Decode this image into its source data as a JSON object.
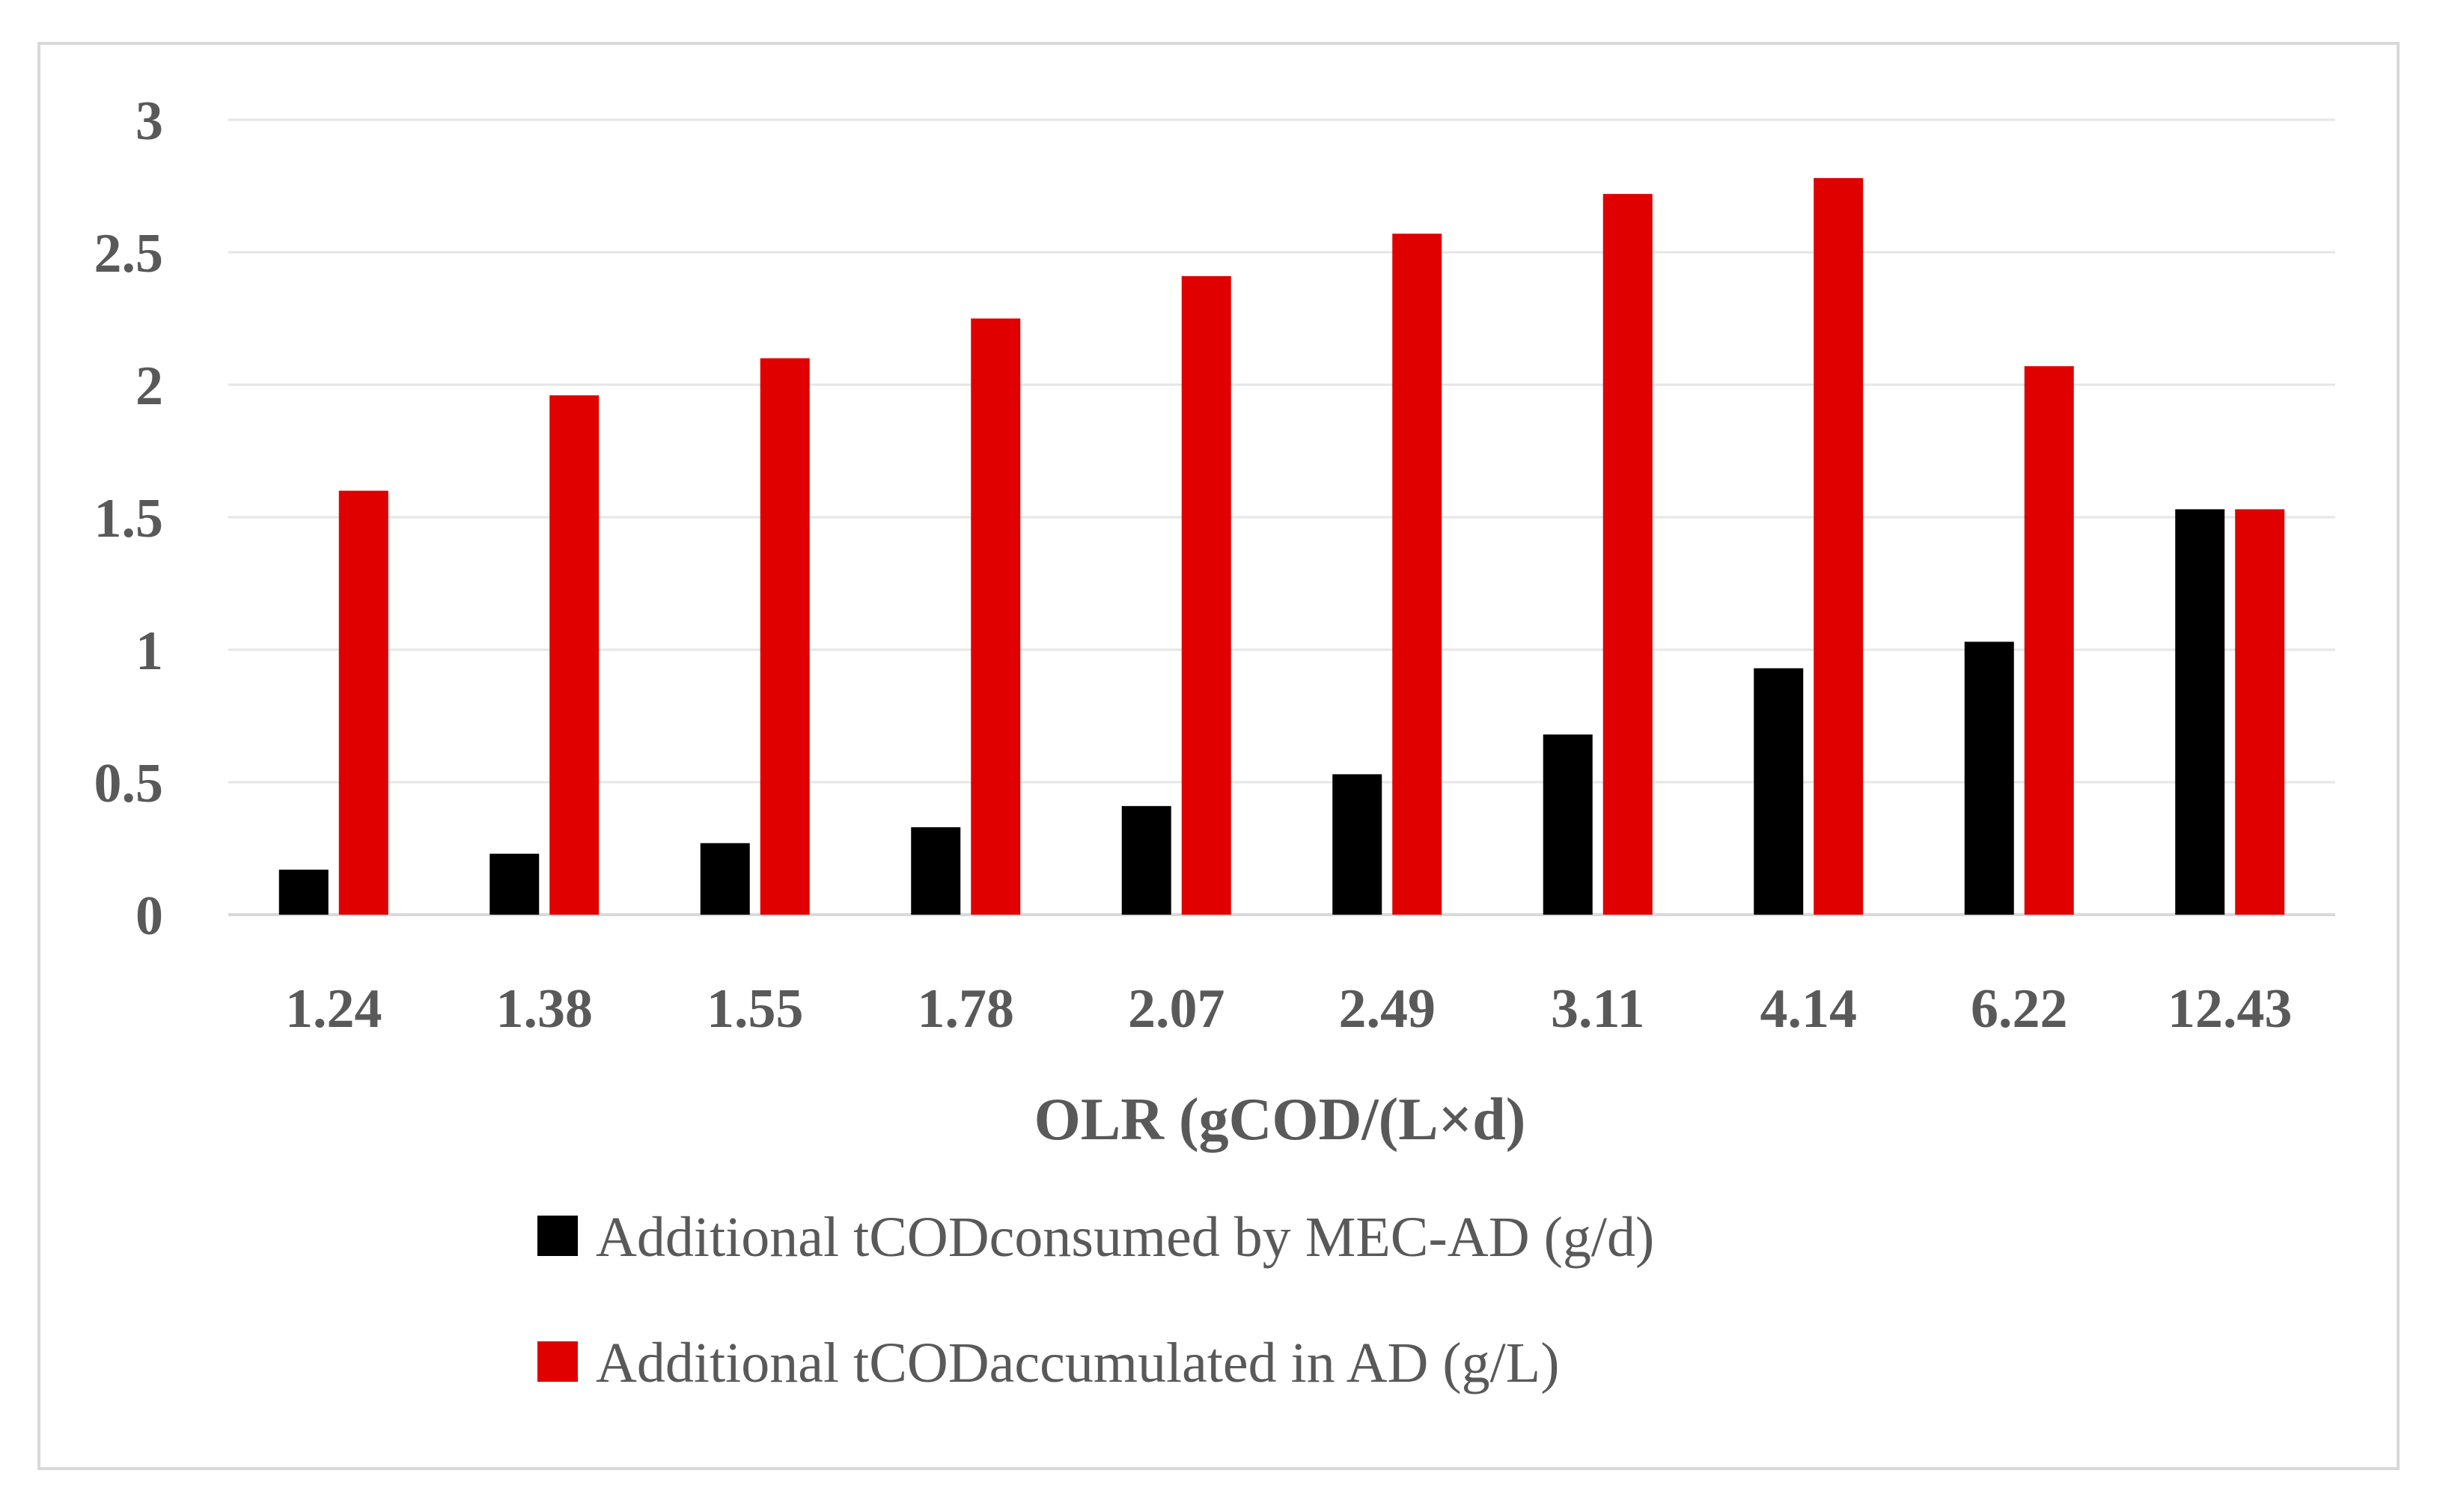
{
  "chart_data": {
    "type": "bar",
    "title": "",
    "xlabel": "OLR (gCOD/(L×d)",
    "ylabel": "",
    "categories": [
      "1.24",
      "1.38",
      "1.55",
      "1.78",
      "2.07",
      "2.49",
      "3.11",
      "4.14",
      "6.22",
      "12.43"
    ],
    "series": [
      {
        "name": "Additional tCODconsumed by MEC-AD (g/d)",
        "color": "#000000",
        "values": [
          0.17,
          0.23,
          0.27,
          0.33,
          0.41,
          0.53,
          0.68,
          0.93,
          1.03,
          1.53
        ]
      },
      {
        "name": "Additional tCODaccumulated in AD (g/L)",
        "color": "#e00000",
        "values": [
          1.6,
          1.96,
          2.1,
          2.25,
          2.41,
          2.57,
          2.72,
          2.78,
          2.07,
          1.53
        ]
      }
    ],
    "ylim": [
      0,
      3
    ],
    "yticks": [
      "0",
      "0.5",
      "1",
      "1.5",
      "2",
      "2.5",
      "3"
    ],
    "grid": true,
    "legend_position": "bottom"
  }
}
